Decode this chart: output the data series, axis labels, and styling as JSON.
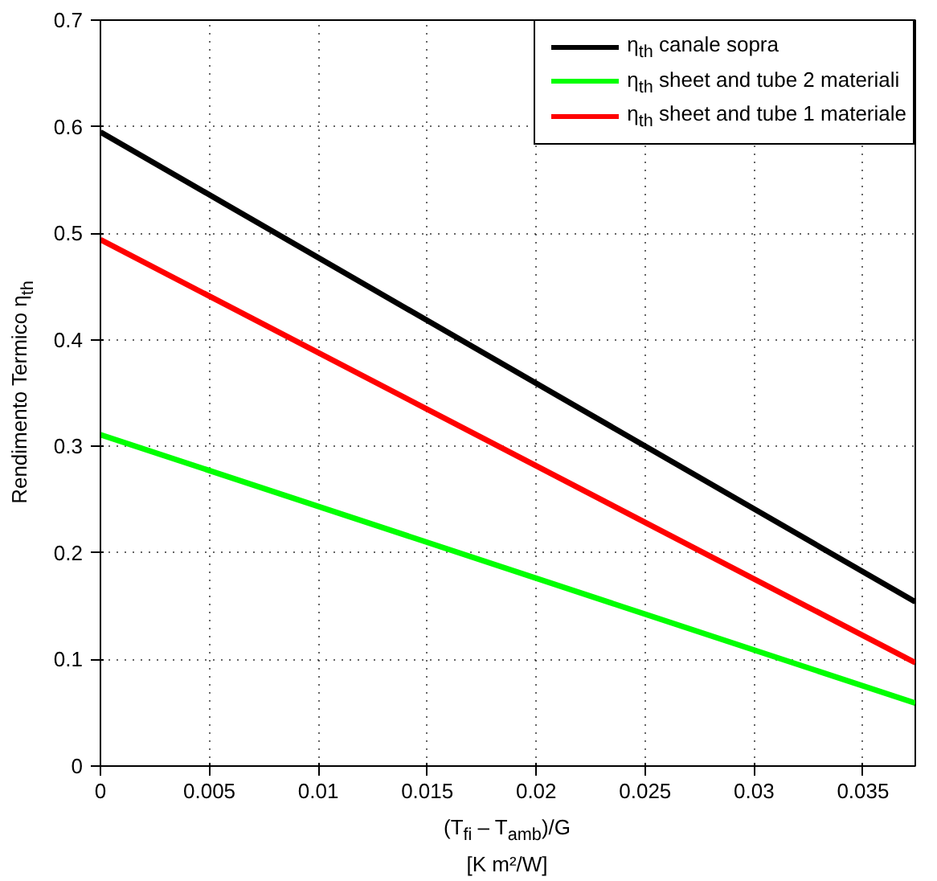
{
  "chart_data": {
    "type": "line",
    "xlabel": "(T$_{fi}$ – T$_{amb}$)/G\n[K m²/W]",
    "ylabel": "Rendimento Termico η$_{th}$",
    "x": [
      0,
      0.0374
    ],
    "series": [
      {
        "name": "η$_{th}$ canale sopra",
        "color": "#000000",
        "values": [
          0.595,
          0.154
        ]
      },
      {
        "name": "η$_{th}$ sheet and tube 2 materiali",
        "color": "#00ff00",
        "values": [
          0.311,
          0.059
        ]
      },
      {
        "name": "η$_{th}$ sheet and tube 1 materiale",
        "color": "#ff0000",
        "values": [
          0.494,
          0.097
        ]
      }
    ],
    "xlim": [
      0,
      0.0374
    ],
    "ylim": [
      0,
      0.7
    ],
    "xticks": [
      0,
      0.005,
      0.01,
      0.015,
      0.02,
      0.025,
      0.03,
      0.035
    ],
    "yticks": [
      0,
      0.1,
      0.2,
      0.3,
      0.4,
      0.5,
      0.6,
      0.7
    ],
    "grid": true,
    "legend": "top right",
    "line_style": "solid"
  }
}
